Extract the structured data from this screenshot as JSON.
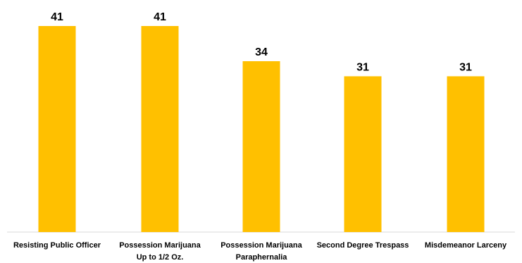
{
  "chart_data": {
    "type": "bar",
    "categories": [
      "Resisting Public Officer",
      "Possession Marijuana Up to 1/2 Oz.",
      "Possession Marijuana Paraphernalia",
      "Second Degree Trespass",
      "Misdemeanor Larceny"
    ],
    "category_lines": [
      [
        "Resisting Public Officer"
      ],
      [
        "Possession Marijuana",
        "Up to 1/2 Oz."
      ],
      [
        "Possession Marijuana",
        "Paraphernalia"
      ],
      [
        "Second Degree Trespass"
      ],
      [
        "Misdemeanor Larceny"
      ]
    ],
    "values": [
      41,
      41,
      34,
      31,
      31
    ],
    "ylim": [
      0,
      41
    ],
    "grid": false,
    "legend": "none",
    "bar_color": "#FFC000"
  }
}
